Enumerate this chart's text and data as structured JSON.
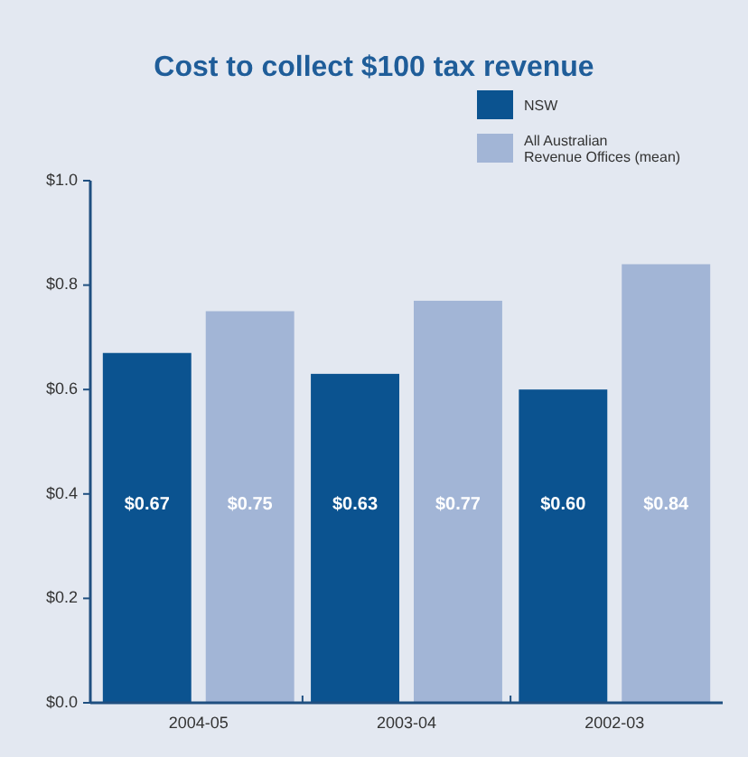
{
  "chart_data": {
    "type": "bar",
    "title": "Cost to collect $100 tax revenue",
    "categories": [
      "2004-05",
      "2003-04",
      "2002-03"
    ],
    "series": [
      {
        "name": "NSW",
        "color": "#0b5390",
        "values": [
          0.67,
          0.63,
          0.6
        ],
        "value_labels": [
          "$0.67",
          "$0.63",
          "$0.60"
        ]
      },
      {
        "name": "All Australian Revenue Offices (mean)",
        "color": "#a2b5d6",
        "values": [
          0.75,
          0.77,
          0.84
        ],
        "value_labels": [
          "$0.75",
          "$0.77",
          "$0.84"
        ]
      }
    ],
    "ylim": [
      0,
      1
    ],
    "yticks": [
      {
        "value": 0,
        "label": "$0.0"
      },
      {
        "value": 0.2,
        "label": "$0.2"
      },
      {
        "value": 0.4,
        "label": "$0.4"
      },
      {
        "value": 0.6,
        "label": "$0.6"
      },
      {
        "value": 0.8,
        "label": "$0.8"
      },
      {
        "value": 1,
        "label": "$1.0"
      }
    ],
    "grid": false,
    "legend": "top right"
  }
}
